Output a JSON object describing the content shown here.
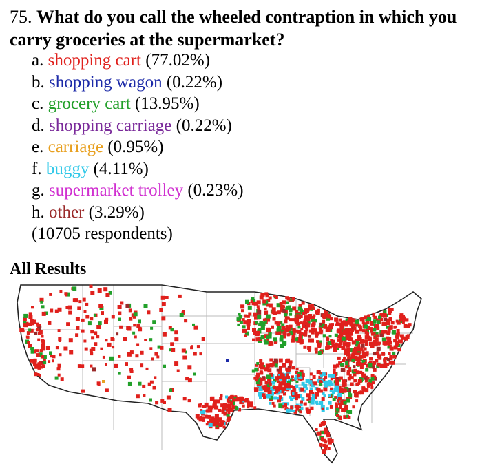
{
  "question": {
    "number": "75.",
    "text": "What do you call the wheeled contraption in which you carry groceries at the supermarket?"
  },
  "options": [
    {
      "letter": "a.",
      "label": "shopping cart",
      "percent": "(77.02%)",
      "color": "#e0201c"
    },
    {
      "letter": "b.",
      "label": "shopping wagon",
      "percent": "(0.22%)",
      "color": "#1c2aa8"
    },
    {
      "letter": "c.",
      "label": "grocery cart",
      "percent": "(13.95%)",
      "color": "#22a02a"
    },
    {
      "letter": "d.",
      "label": "shopping carriage",
      "percent": "(0.22%)",
      "color": "#7a2a9a"
    },
    {
      "letter": "e.",
      "label": "carriage",
      "percent": "(0.95%)",
      "color": "#e8a020"
    },
    {
      "letter": "f.",
      "label": "buggy",
      "percent": "(4.11%)",
      "color": "#30c8e8"
    },
    {
      "letter": "g.",
      "label": "supermarket trolley",
      "percent": "(0.23%)",
      "color": "#d030d0"
    },
    {
      "letter": "h.",
      "label": "other",
      "percent": "(3.29%)",
      "color": "#9a2a2a"
    }
  ],
  "respondents": "(10705 respondents)",
  "results_heading": "All Results",
  "map": {
    "region": "contiguous-united-states",
    "border_color": "#222222",
    "state_line_color": "#bbbbbb"
  }
}
